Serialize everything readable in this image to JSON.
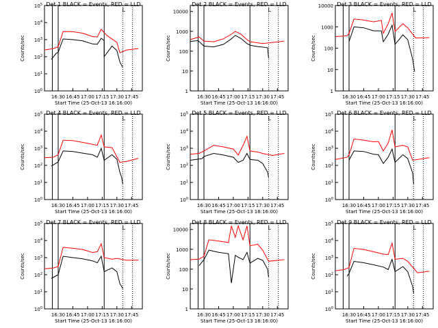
{
  "x_ticks": [
    "16:30",
    "16:45",
    "17:00",
    "17:15",
    "17:30",
    "17:45"
  ],
  "xlabel": "Start Time (25-Oct-13 16:16:00)",
  "ylabel": "Counts/sec",
  "legend_text": "BLACK = Events, RED = LLD",
  "colors": {
    "events": "#000000",
    "lld": "#ff0000"
  },
  "chart_data": [
    {
      "type": "line",
      "title": "Det 1",
      "scale": "log",
      "ylim": [
        1,
        100000
      ],
      "marker": "L",
      "y_ticks": [
        "10^0",
        "10^1",
        "10^2",
        "10^3",
        "10^4",
        "10^5"
      ],
      "series": [
        {
          "name": "Events",
          "x": [
            "16:23",
            "16:28",
            "16:30",
            "16:35",
            "16:45",
            "16:55",
            "17:05",
            "17:10",
            "17:14",
            "17:17",
            "17:17",
            "17:25",
            "17:30",
            "17:33",
            "17:35",
            "17:36"
          ],
          "values": [
            70,
            160,
            180,
            1100,
            1000,
            850,
            560,
            540,
            1200,
            880,
            100,
            420,
            230,
            50,
            30,
            25
          ]
        },
        {
          "name": "LLD",
          "x": [
            "16:16",
            "16:25",
            "16:30",
            "16:35",
            "16:45",
            "16:55",
            "17:05",
            "17:10",
            "17:14",
            "17:17",
            "17:20",
            "17:30",
            "17:33",
            "17:40",
            "17:52"
          ],
          "values": [
            250,
            300,
            380,
            3000,
            2900,
            2400,
            1500,
            1450,
            4000,
            2600,
            1700,
            700,
            170,
            250,
            300
          ]
        }
      ]
    },
    {
      "type": "line",
      "title": "Det 2",
      "scale": "log",
      "ylim": [
        1,
        20000
      ],
      "marker": "L",
      "y_ticks": [
        "1",
        "10",
        "100",
        "1000",
        "10000"
      ],
      "series": [
        {
          "name": "Events",
          "x": [
            "16:16",
            "16:24",
            "16:30",
            "16:40",
            "16:50",
            "16:58",
            "17:02",
            "17:08",
            "17:14",
            "17:17",
            "17:25",
            "17:35",
            "17:36"
          ],
          "values": [
            310,
            340,
            180,
            165,
            220,
            420,
            620,
            430,
            240,
            200,
            170,
            150,
            45
          ]
        },
        {
          "name": "LLD",
          "x": [
            "16:16",
            "16:25",
            "16:30",
            "16:40",
            "16:50",
            "16:58",
            "17:02",
            "17:08",
            "17:14",
            "17:17",
            "17:30",
            "17:52"
          ],
          "values": [
            380,
            520,
            320,
            300,
            420,
            720,
            1000,
            700,
            380,
            300,
            240,
            320
          ]
        }
      ]
    },
    {
      "type": "line",
      "title": "Det 3",
      "scale": "log",
      "ylim": [
        1,
        10000
      ],
      "marker": "L",
      "y_ticks": [
        "1",
        "10",
        "100",
        "1000",
        "10000"
      ],
      "series": [
        {
          "name": "Events",
          "x": [
            "16:30",
            "16:35",
            "16:45",
            "16:55",
            "17:03",
            "17:05",
            "17:10",
            "17:14",
            "17:17",
            "17:25",
            "17:30",
            "17:35",
            "17:37"
          ],
          "values": [
            200,
            1000,
            900,
            650,
            650,
            200,
            450,
            1200,
            150,
            420,
            250,
            30,
            8
          ]
        },
        {
          "name": "LLD",
          "x": [
            "16:16",
            "16:28",
            "16:30",
            "16:35",
            "16:45",
            "16:55",
            "17:03",
            "17:05",
            "17:10",
            "17:14",
            "17:17",
            "17:25",
            "17:30",
            "17:38",
            "17:52"
          ],
          "values": [
            350,
            380,
            500,
            2300,
            2100,
            1700,
            2000,
            500,
            1400,
            4500,
            600,
            1400,
            900,
            300,
            310
          ]
        }
      ]
    },
    {
      "type": "line",
      "title": "Det 4",
      "scale": "log",
      "ylim": [
        1,
        100000
      ],
      "marker": "L",
      "y_ticks": [
        "10^0",
        "10^1",
        "10^2",
        "10^3",
        "10^4",
        "10^5"
      ],
      "series": [
        {
          "name": "Events",
          "x": [
            "16:23",
            "16:30",
            "16:35",
            "16:45",
            "16:55",
            "17:05",
            "17:10",
            "17:14",
            "17:17",
            "17:25",
            "17:30",
            "17:33",
            "17:35",
            "17:36"
          ],
          "values": [
            90,
            160,
            700,
            650,
            520,
            420,
            300,
            1000,
            200,
            420,
            230,
            40,
            18,
            8
          ]
        },
        {
          "name": "LLD",
          "x": [
            "16:16",
            "16:25",
            "16:30",
            "16:35",
            "16:45",
            "16:55",
            "17:05",
            "17:10",
            "17:14",
            "17:17",
            "17:25",
            "17:33",
            "17:40",
            "17:52"
          ],
          "values": [
            280,
            300,
            420,
            3000,
            2800,
            2200,
            1700,
            1500,
            6000,
            1200,
            1100,
            150,
            170,
            260
          ]
        }
      ]
    },
    {
      "type": "line",
      "title": "Det 5",
      "scale": "log",
      "ylim": [
        1,
        100000
      ],
      "marker": "L",
      "y_ticks": [
        "10^0",
        "10^1",
        "10^2",
        "10^3",
        "10^4",
        "10^5"
      ],
      "series": [
        {
          "name": "Events",
          "x": [
            "16:16",
            "16:28",
            "16:30",
            "16:40",
            "16:50",
            "17:00",
            "17:05",
            "17:10",
            "17:14",
            "17:17",
            "17:25",
            "17:30",
            "17:35",
            "17:36"
          ],
          "values": [
            200,
            250,
            330,
            500,
            400,
            300,
            150,
            200,
            500,
            220,
            200,
            130,
            40,
            20
          ]
        },
        {
          "name": "LLD",
          "x": [
            "16:16",
            "16:25",
            "16:30",
            "16:40",
            "16:50",
            "17:00",
            "17:05",
            "17:10",
            "17:14",
            "17:17",
            "17:25",
            "17:30",
            "17:40",
            "17:52"
          ],
          "values": [
            450,
            500,
            700,
            1500,
            1200,
            900,
            400,
            1500,
            5000,
            700,
            600,
            500,
            380,
            500
          ]
        }
      ]
    },
    {
      "type": "line",
      "title": "Det 6",
      "scale": "log",
      "ylim": [
        1,
        100000
      ],
      "marker": "L",
      "y_ticks": [
        "10^0",
        "10^1",
        "10^2",
        "10^3",
        "10^4",
        "10^5"
      ],
      "series": [
        {
          "name": "Events",
          "x": [
            "16:30",
            "16:35",
            "16:45",
            "16:55",
            "17:00",
            "17:05",
            "17:10",
            "17:14",
            "17:17",
            "17:25",
            "17:30",
            "17:35",
            "17:36"
          ],
          "values": [
            200,
            700,
            650,
            450,
            420,
            130,
            300,
            900,
            150,
            420,
            250,
            35,
            8
          ]
        },
        {
          "name": "LLD",
          "x": [
            "16:16",
            "16:28",
            "16:30",
            "16:35",
            "16:45",
            "16:55",
            "17:00",
            "17:05",
            "17:10",
            "17:14",
            "17:17",
            "17:25",
            "17:30",
            "17:35",
            "17:52"
          ],
          "values": [
            220,
            300,
            400,
            3500,
            3000,
            2400,
            2500,
            700,
            2000,
            12000,
            1200,
            1500,
            1200,
            200,
            280
          ]
        }
      ]
    },
    {
      "type": "line",
      "title": "Det 7",
      "scale": "log",
      "ylim": [
        1,
        100000
      ],
      "marker": "L",
      "y_ticks": [
        "10^0",
        "10^1",
        "10^2",
        "10^3",
        "10^4",
        "10^5"
      ],
      "series": [
        {
          "name": "Events",
          "x": [
            "16:23",
            "16:30",
            "16:35",
            "16:45",
            "16:55",
            "17:05",
            "17:10",
            "17:14",
            "17:17",
            "17:25",
            "17:30",
            "17:33",
            "17:35",
            "17:36"
          ],
          "values": [
            60,
            100,
            1200,
            1000,
            850,
            650,
            500,
            1200,
            150,
            250,
            150,
            30,
            20,
            15
          ]
        },
        {
          "name": "LLD",
          "x": [
            "16:16",
            "16:25",
            "16:30",
            "16:35",
            "16:45",
            "16:55",
            "17:05",
            "17:10",
            "17:14",
            "17:17",
            "17:25",
            "17:30",
            "17:40",
            "17:52"
          ],
          "values": [
            220,
            250,
            300,
            4000,
            3500,
            3000,
            2000,
            2200,
            6500,
            1000,
            800,
            900,
            700,
            720
          ]
        }
      ]
    },
    {
      "type": "line",
      "title": "Det 8",
      "scale": "log",
      "ylim": [
        1,
        20000
      ],
      "marker": "L",
      "y_ticks": [
        "1",
        "10",
        "100",
        "1000",
        "10000"
      ],
      "series": [
        {
          "name": "Events",
          "x": [
            "16:25",
            "16:30",
            "16:35",
            "16:45",
            "16:55",
            "16:58",
            "17:02",
            "17:05",
            "17:10",
            "17:14",
            "17:17",
            "17:25",
            "17:30",
            "17:35",
            "17:36"
          ],
          "values": [
            150,
            300,
            900,
            700,
            600,
            20,
            500,
            400,
            300,
            700,
            200,
            350,
            280,
            100,
            40
          ]
        },
        {
          "name": "LLD",
          "x": [
            "16:16",
            "16:25",
            "16:30",
            "16:35",
            "16:45",
            "16:55",
            "16:58",
            "17:02",
            "17:05",
            "17:10",
            "17:14",
            "17:17",
            "17:25",
            "17:30",
            "17:36",
            "17:52"
          ],
          "values": [
            300,
            320,
            450,
            3000,
            2600,
            2200,
            15000,
            4000,
            15000,
            3000,
            15000,
            1500,
            1800,
            900,
            250,
            300
          ]
        }
      ]
    },
    {
      "type": "line",
      "title": "Det 9",
      "scale": "log",
      "ylim": [
        1,
        100000
      ],
      "marker": "L",
      "y_ticks": [
        "10^0",
        "10^1",
        "10^2",
        "10^3",
        "10^4",
        "10^5"
      ],
      "series": [
        {
          "name": "Events",
          "x": [
            "16:28",
            "16:30",
            "16:35",
            "16:45",
            "16:55",
            "17:05",
            "17:10",
            "17:14",
            "17:17",
            "17:25",
            "17:30",
            "17:35",
            "17:36"
          ],
          "values": [
            80,
            120,
            600,
            500,
            380,
            280,
            200,
            800,
            150,
            300,
            150,
            20,
            8
          ]
        },
        {
          "name": "LLD",
          "x": [
            "16:16",
            "16:25",
            "16:30",
            "16:35",
            "16:45",
            "16:55",
            "17:05",
            "17:10",
            "17:14",
            "17:17",
            "17:25",
            "17:30",
            "17:40",
            "17:52"
          ],
          "values": [
            170,
            200,
            260,
            3500,
            3000,
            2200,
            1600,
            1500,
            7000,
            800,
            900,
            600,
            130,
            160
          ]
        }
      ]
    }
  ]
}
